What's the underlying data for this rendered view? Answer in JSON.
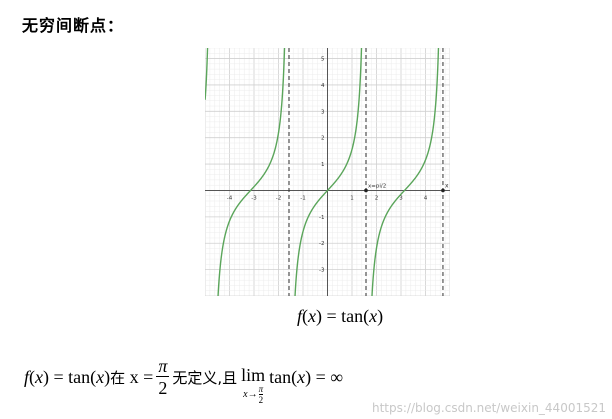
{
  "heading": "无穷间断点：",
  "caption": {
    "f": "f",
    "x": "x",
    "rest": "= tan(",
    "close": ")"
  },
  "formula": {
    "lhs": "f",
    "eq_tan": "= tan(",
    "x": "x",
    "close": ")",
    "zai": "在",
    "x_eq": "x =",
    "pi": "π",
    "two": "2",
    "undef": "无定义,且",
    "lim": "lim",
    "lim_sub_x": "x",
    "arrow": "→",
    "tan_expr": "tan(",
    "equals_inf": ") = ∞"
  },
  "watermark": "https://blog.csdn.net/weixin_44001521",
  "chart_data": {
    "type": "line",
    "function": "tan(x)",
    "xlim": [
      -5,
      5
    ],
    "ylim": [
      -4,
      5.4
    ],
    "grid": true,
    "x_ticks": [
      -4,
      -3,
      -2,
      -1,
      1,
      2,
      3,
      4
    ],
    "y_ticks": [
      -3,
      -2,
      -1,
      1,
      2,
      3,
      4,
      5
    ],
    "asymptotes": [
      -1.5708,
      1.5708,
      4.7124
    ],
    "axis_label_x": "x",
    "point_label": "x=pi/2",
    "curve_color": "#5aa55a",
    "asymptote_color": "#333333"
  }
}
